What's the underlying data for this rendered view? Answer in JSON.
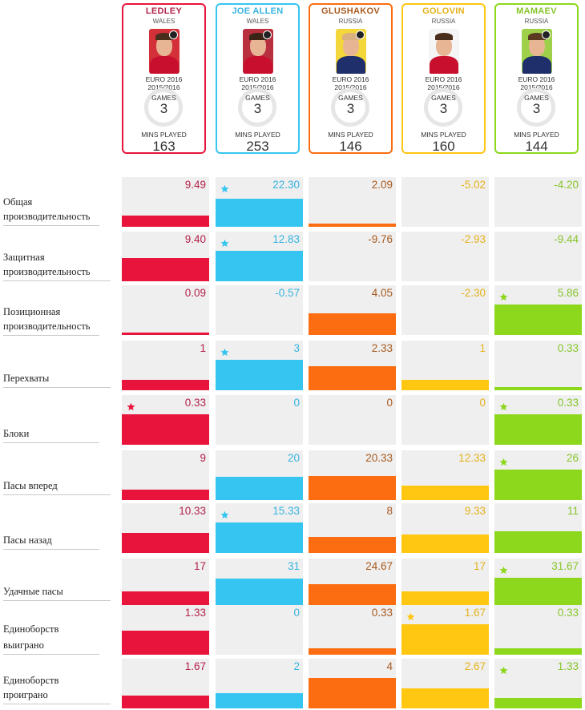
{
  "colors": {
    "ledley": "#e8143b",
    "allen": "#36c5f0",
    "glushakov": "#fb6d10",
    "golovin": "#ffc612",
    "mamaev": "#8dd71c",
    "ledley_text": "#b3224a",
    "allen_text": "#36b4df",
    "glushakov_text": "#a85a1e",
    "golovin_text": "#e6b21a",
    "mamaev_text": "#86c52a"
  },
  "players": [
    {
      "name": "LEDLEY",
      "country": "WALES",
      "competition": "EURO 2016",
      "season": "2015/2016",
      "games_label": "GAMES",
      "games": "3",
      "mins_label": "MINS PLAYED",
      "mins": "163",
      "badge_icon": "club-badge-icon"
    },
    {
      "name": "JOE ALLEN",
      "country": "WALES",
      "competition": "EURO 2016",
      "season": "2015/2016",
      "games_label": "GAMES",
      "games": "3",
      "mins_label": "MINS PLAYED",
      "mins": "253",
      "badge_icon": "club-badge-icon"
    },
    {
      "name": "GLUSHAKOV",
      "country": "RUSSIA",
      "competition": "EURO 2016",
      "season": "2015/2016",
      "games_label": "GAMES",
      "games": "3",
      "mins_label": "MINS PLAYED",
      "mins": "146",
      "badge_icon": "club-badge-icon"
    },
    {
      "name": "GOLOVIN",
      "country": "RUSSIA",
      "competition": "EURO 2016",
      "season": "2015/2016",
      "games_label": "GAMES",
      "games": "3",
      "mins_label": "MINS PLAYED",
      "mins": "160",
      "badge_icon": "none"
    },
    {
      "name": "MAMAEV",
      "country": "RUSSIA",
      "competition": "EURO 2016",
      "season": "2015/2016",
      "games_label": "GAMES",
      "games": "3",
      "mins_label": "MINS PLAYED",
      "mins": "144",
      "badge_icon": "club-badge-icon"
    }
  ],
  "chart_data": {
    "type": "bar",
    "layout": "grid of metric rows by player columns",
    "series": [
      {
        "name": "LEDLEY"
      },
      {
        "name": "JOE ALLEN"
      },
      {
        "name": "GLUSHAKOV"
      },
      {
        "name": "GOLOVIN"
      },
      {
        "name": "MAMAEV"
      }
    ],
    "rows": [
      {
        "label": "Общая производительность",
        "display": [
          "9.49",
          "22.30",
          "2.09",
          "-5.02",
          "-4.20"
        ],
        "values": [
          9.49,
          22.3,
          2.09,
          -5.02,
          -4.2
        ],
        "fill": [
          0.38,
          0.92,
          0.1,
          0,
          0
        ],
        "star": 1
      },
      {
        "label": "Защитная производительность",
        "display": [
          "9.40",
          "12.83",
          "-9.76",
          "-2.93",
          "-9.44"
        ],
        "values": [
          9.4,
          12.83,
          -9.76,
          -2.93,
          -9.44
        ],
        "fill": [
          0.75,
          1.0,
          0,
          0,
          0
        ],
        "star": 1
      },
      {
        "label": "Позиционная производительность",
        "display": [
          "0.09",
          "-0.57",
          "4.05",
          "-2.30",
          "5.86"
        ],
        "values": [
          0.09,
          -0.57,
          4.05,
          -2.3,
          5.86
        ],
        "fill": [
          0.03,
          0,
          0.7,
          0,
          1.0
        ],
        "star": 4
      },
      {
        "label": "Перехваты",
        "display": [
          "1",
          "3",
          "2.33",
          "1",
          "0.33"
        ],
        "values": [
          1,
          3,
          2.33,
          1,
          0.33
        ],
        "fill": [
          0.33,
          1.0,
          0.78,
          0.33,
          0.11
        ],
        "star": 1
      },
      {
        "label": "Блоки",
        "display": [
          "0.33",
          "0",
          "0",
          "0",
          "0.33"
        ],
        "values": [
          0.33,
          0,
          0,
          0,
          0.33
        ],
        "fill": [
          1.0,
          0,
          0,
          0,
          1.0
        ],
        "star": 0,
        "star2": 4
      },
      {
        "label": "Пасы вперед",
        "display": [
          "9",
          "20",
          "20.33",
          "12.33",
          "26"
        ],
        "values": [
          9,
          20,
          20.33,
          12.33,
          26
        ],
        "fill": [
          0.35,
          0.77,
          0.78,
          0.47,
          1.0
        ],
        "star": 4
      },
      {
        "label": "Пасы назад",
        "display": [
          "10.33",
          "15.33",
          "8",
          "9.33",
          "11"
        ],
        "values": [
          10.33,
          15.33,
          8,
          9.33,
          11
        ],
        "fill": [
          0.67,
          1.0,
          0.52,
          0.61,
          0.72
        ],
        "star": 1
      },
      {
        "label": "Удачные пасы",
        "display": [
          "17",
          "31",
          "24.67",
          "17",
          "31.67"
        ],
        "values": [
          17,
          31,
          24.67,
          17,
          31.67
        ],
        "fill": [
          0.54,
          0.98,
          0.78,
          0.54,
          1.0
        ],
        "star": 4
      },
      {
        "label": "Единоборств выиграно",
        "display": [
          "1.33",
          "0",
          "0.33",
          "1.67",
          "0.33"
        ],
        "values": [
          1.33,
          0,
          0.33,
          1.67,
          0.33
        ],
        "fill": [
          0.8,
          0,
          0.2,
          1.0,
          0.2
        ],
        "star": 3
      },
      {
        "label": "Единоборств проиграно",
        "display": [
          "1.67",
          "2",
          "4",
          "2.67",
          "1.33"
        ],
        "values": [
          1.67,
          2,
          4,
          2.67,
          1.33
        ],
        "fill": [
          0.42,
          0.5,
          1.0,
          0.67,
          0.33
        ],
        "star": 4
      }
    ]
  }
}
